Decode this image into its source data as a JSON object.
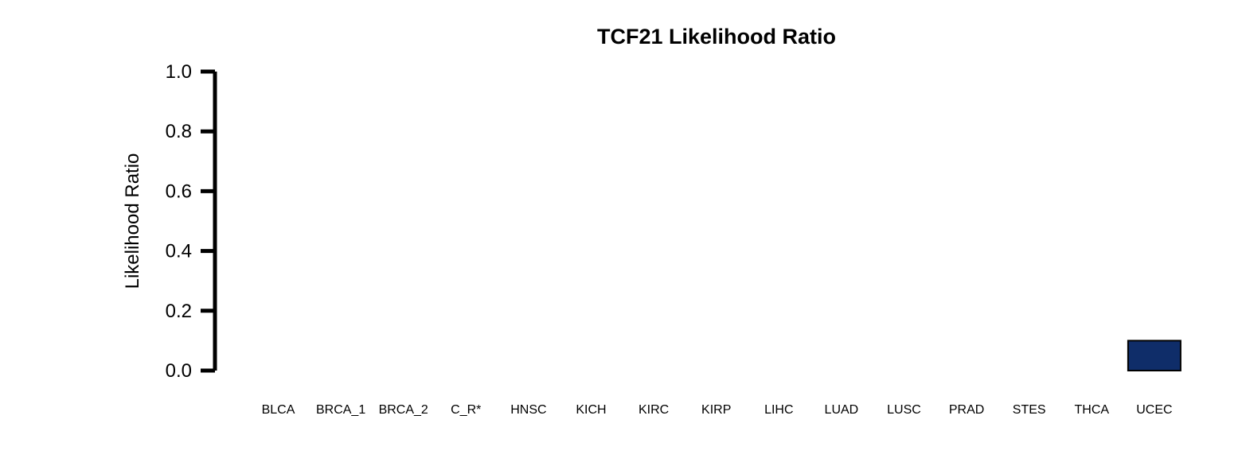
{
  "chart_data": {
    "type": "bar",
    "title": "TCF21 Likelihood Ratio",
    "xlabel": "",
    "ylabel": "Likelihood Ratio",
    "ylim": [
      0,
      1.0
    ],
    "yticks": [
      "0.0",
      "0.2",
      "0.4",
      "0.6",
      "0.8",
      "1.0"
    ],
    "categories": [
      "BLCA",
      "BRCA_1",
      "BRCA_2",
      "C_R*",
      "HNSC",
      "KICH",
      "KIRC",
      "KIRP",
      "LIHC",
      "LUAD",
      "LUSC",
      "PRAD",
      "STES",
      "THCA",
      "UCEC"
    ],
    "values": [
      0,
      0,
      0,
      0,
      0,
      0,
      0,
      0,
      0,
      0,
      0,
      0,
      0,
      0,
      0.1
    ],
    "bar_color": "#0f2d69",
    "grid": false,
    "legend": "none"
  }
}
